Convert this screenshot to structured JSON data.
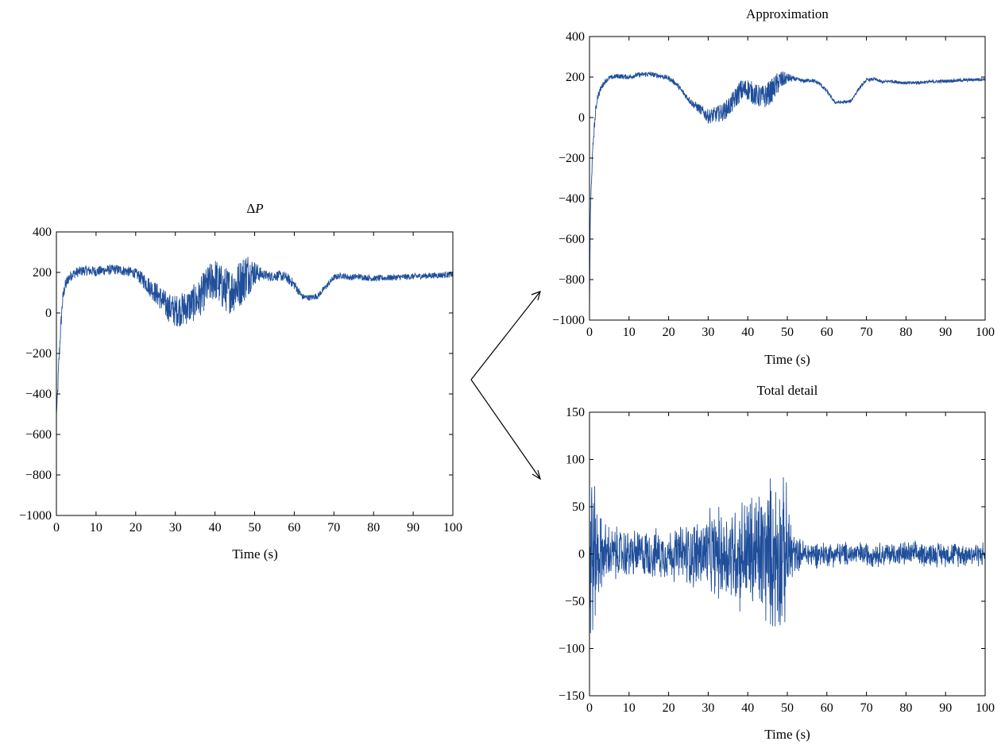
{
  "colors": {
    "series": "#1f4e9a",
    "axes": "#000000",
    "background": "#ffffff"
  },
  "chart_data": [
    {
      "id": "delta-p",
      "type": "line",
      "title": "ΔP",
      "title_prefix": "Δ",
      "title_symbol": "P",
      "xlabel": "Time (s)",
      "ylabel": "",
      "xlim": [
        0,
        100
      ],
      "ylim": [
        -1000,
        400
      ],
      "xticks": [
        0,
        10,
        20,
        30,
        40,
        50,
        60,
        70,
        80,
        90,
        100
      ],
      "xtick_labels": [
        "0",
        "10",
        "20",
        "30",
        "40",
        "50",
        "60",
        "70",
        "80",
        "90",
        "100"
      ],
      "yticks": [
        400,
        200,
        0,
        -200,
        -400,
        -600,
        -800,
        -1000
      ],
      "ytick_labels": [
        "400",
        "200",
        "0",
        "−200",
        "−400",
        "−600",
        "−800",
        "−1000"
      ],
      "grid": false,
      "series": [
        {
          "x": [
            0,
            0.3,
            0.6,
            1,
            1.5,
            2,
            3,
            4,
            5,
            7,
            10,
            12,
            15,
            18,
            20,
            22,
            24,
            26,
            28,
            30,
            32,
            34,
            36,
            38,
            40,
            42,
            44,
            46,
            48,
            50,
            52,
            54,
            56,
            58,
            60,
            62,
            64,
            66,
            68,
            70,
            72,
            74,
            76,
            78,
            80,
            85,
            90,
            95,
            100
          ],
          "values": [
            -500,
            -400,
            -250,
            -100,
            50,
            120,
            170,
            190,
            200,
            210,
            205,
            210,
            215,
            205,
            195,
            160,
            120,
            80,
            30,
            10,
            20,
            40,
            70,
            130,
            170,
            120,
            110,
            140,
            190,
            200,
            190,
            180,
            185,
            175,
            140,
            80,
            75,
            85,
            130,
            175,
            185,
            175,
            180,
            175,
            170,
            175,
            180,
            185,
            190
          ],
          "noise": [
            0,
            40,
            40,
            40,
            40,
            35,
            30,
            25,
            25,
            25,
            25,
            25,
            25,
            25,
            25,
            40,
            50,
            60,
            70,
            80,
            85,
            90,
            95,
            100,
            105,
            110,
            115,
            120,
            120,
            60,
            25,
            25,
            25,
            25,
            25,
            15,
            15,
            15,
            15,
            15,
            15,
            15,
            15,
            15,
            15,
            15,
            15,
            15,
            15
          ]
        }
      ]
    },
    {
      "id": "approximation",
      "type": "line",
      "title": "Approximation",
      "xlabel": "Time (s)",
      "ylabel": "",
      "xlim": [
        0,
        100
      ],
      "ylim": [
        -1000,
        400
      ],
      "xticks": [
        0,
        10,
        20,
        30,
        40,
        50,
        60,
        70,
        80,
        90,
        100
      ],
      "xtick_labels": [
        "0",
        "10",
        "20",
        "30",
        "40",
        "50",
        "60",
        "70",
        "80",
        "90",
        "100"
      ],
      "yticks": [
        400,
        200,
        0,
        -200,
        -400,
        -600,
        -800,
        -1000
      ],
      "ytick_labels": [
        "400",
        "200",
        "0",
        "−200",
        "−400",
        "−600",
        "−800",
        "−1000"
      ],
      "grid": false,
      "series": [
        {
          "x": [
            0,
            0.2,
            0.5,
            1,
            1.5,
            2,
            3,
            4,
            5,
            7,
            10,
            12,
            15,
            18,
            20,
            22,
            24,
            26,
            28,
            30,
            32,
            34,
            36,
            38,
            40,
            42,
            44,
            46,
            48,
            50,
            52,
            54,
            56,
            58,
            60,
            62,
            64,
            66,
            68,
            70,
            72,
            74,
            76,
            78,
            80,
            85,
            90,
            95,
            100
          ],
          "values": [
            -950,
            -500,
            -300,
            -100,
            20,
            100,
            150,
            180,
            195,
            205,
            200,
            210,
            215,
            205,
            195,
            165,
            115,
            70,
            40,
            5,
            15,
            30,
            70,
            130,
            140,
            110,
            100,
            130,
            180,
            195,
            190,
            180,
            185,
            170,
            130,
            75,
            75,
            80,
            140,
            185,
            190,
            175,
            180,
            175,
            170,
            175,
            180,
            185,
            190
          ],
          "noise": [
            0,
            30,
            30,
            30,
            25,
            20,
            15,
            12,
            12,
            12,
            12,
            12,
            12,
            12,
            12,
            12,
            15,
            18,
            25,
            35,
            40,
            45,
            50,
            55,
            55,
            55,
            60,
            60,
            55,
            25,
            10,
            10,
            10,
            10,
            10,
            8,
            8,
            8,
            8,
            8,
            8,
            8,
            8,
            8,
            8,
            8,
            8,
            8,
            8
          ]
        }
      ]
    },
    {
      "id": "total-detail",
      "type": "line",
      "title": "Total detail",
      "xlabel": "Time (s)",
      "ylabel": "",
      "xlim": [
        0,
        100
      ],
      "ylim": [
        -150,
        150
      ],
      "xticks": [
        0,
        10,
        20,
        30,
        40,
        50,
        60,
        70,
        80,
        90,
        100
      ],
      "xtick_labels": [
        "0",
        "10",
        "20",
        "30",
        "40",
        "50",
        "60",
        "70",
        "80",
        "90",
        "100"
      ],
      "yticks": [
        150,
        100,
        50,
        0,
        -50,
        -100,
        -150
      ],
      "ytick_labels": [
        "150",
        "100",
        "50",
        "0",
        "−50",
        "−100",
        "−150"
      ],
      "grid": false,
      "series": [
        {
          "x": [
            0,
            0.5,
            1,
            2,
            3,
            5,
            10,
            15,
            20,
            25,
            30,
            35,
            40,
            45,
            48,
            50,
            52,
            55,
            60,
            65,
            70,
            80,
            90,
            100
          ],
          "values": [
            0,
            0,
            0,
            0,
            0,
            0,
            0,
            0,
            0,
            0,
            0,
            0,
            0,
            0,
            0,
            0,
            0,
            0,
            0,
            0,
            0,
            0,
            0,
            0
          ],
          "envelope": [
            140,
            140,
            100,
            60,
            45,
            35,
            30,
            30,
            30,
            40,
            50,
            60,
            75,
            90,
            100,
            80,
            20,
            18,
            15,
            15,
            15,
            15,
            15,
            15
          ]
        }
      ]
    }
  ]
}
